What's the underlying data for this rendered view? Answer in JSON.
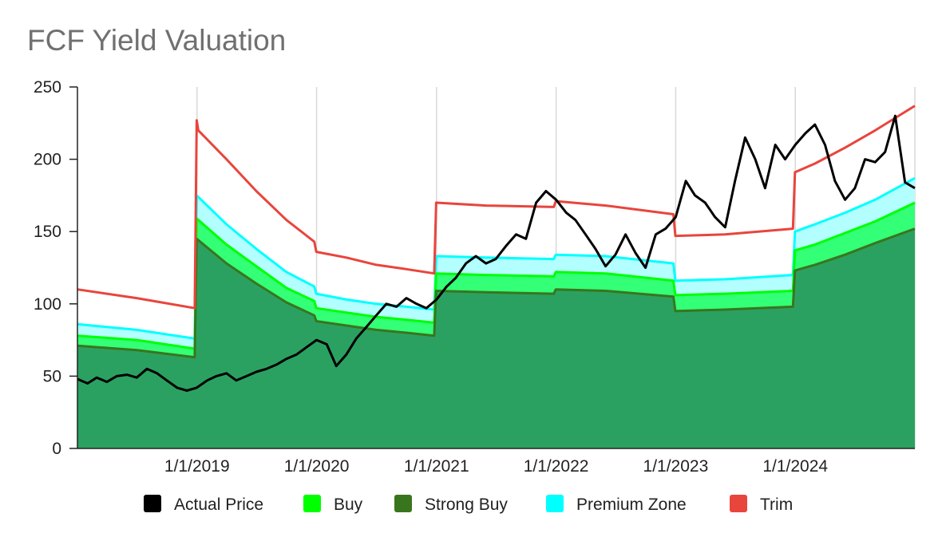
{
  "chart_data": {
    "type": "area",
    "title": "FCF Yield Valuation",
    "xlabel": "",
    "ylabel": "",
    "ylim": [
      0,
      250
    ],
    "xlim": [
      "2018-01-01",
      "2024-12-31"
    ],
    "y_ticks": [
      0,
      50,
      100,
      150,
      200,
      250
    ],
    "x_ticks": [
      {
        "date": "2019-01-01",
        "label": "1/1/2019"
      },
      {
        "date": "2020-01-01",
        "label": "1/1/2020"
      },
      {
        "date": "2021-01-01",
        "label": "1/1/2021"
      },
      {
        "date": "2022-01-01",
        "label": "1/1/2022"
      },
      {
        "date": "2023-01-01",
        "label": "1/1/2023"
      },
      {
        "date": "2024-01-01",
        "label": "1/1/2024"
      }
    ],
    "grid": "vertical",
    "legend_position": "bottom",
    "series": [
      {
        "name": "Trim",
        "kind": "line",
        "color": "#e8453c",
        "points": [
          [
            "2018-01-01",
            110
          ],
          [
            "2018-07-01",
            104
          ],
          [
            "2018-12-25",
            97
          ],
          [
            "2018-12-31",
            227
          ],
          [
            "2019-01-05",
            220
          ],
          [
            "2019-04-01",
            200
          ],
          [
            "2019-07-01",
            178
          ],
          [
            "2019-10-01",
            158
          ],
          [
            "2019-12-25",
            143
          ],
          [
            "2019-12-31",
            136
          ],
          [
            "2020-04-01",
            132
          ],
          [
            "2020-07-01",
            127
          ],
          [
            "2020-10-01",
            124
          ],
          [
            "2020-12-25",
            121
          ],
          [
            "2020-12-31",
            170
          ],
          [
            "2021-06-01",
            168
          ],
          [
            "2021-12-25",
            167
          ],
          [
            "2021-12-31",
            171
          ],
          [
            "2022-06-01",
            168
          ],
          [
            "2022-12-25",
            162
          ],
          [
            "2022-12-31",
            147
          ],
          [
            "2023-06-01",
            148
          ],
          [
            "2023-12-25",
            152
          ],
          [
            "2023-12-31",
            191
          ],
          [
            "2024-03-01",
            197
          ],
          [
            "2024-06-01",
            208
          ],
          [
            "2024-09-01",
            220
          ],
          [
            "2024-12-31",
            237
          ]
        ]
      },
      {
        "name": "Premium Zone",
        "kind": "area",
        "color": "#00ffff",
        "fill": "#b3ffff",
        "points": [
          [
            "2018-01-01",
            86
          ],
          [
            "2018-07-01",
            82
          ],
          [
            "2018-12-25",
            76
          ],
          [
            "2018-12-31",
            175
          ],
          [
            "2019-04-01",
            155
          ],
          [
            "2019-07-01",
            138
          ],
          [
            "2019-10-01",
            122
          ],
          [
            "2019-12-25",
            112
          ],
          [
            "2019-12-31",
            107
          ],
          [
            "2020-04-01",
            103
          ],
          [
            "2020-07-01",
            100
          ],
          [
            "2020-10-01",
            98
          ],
          [
            "2020-12-25",
            96
          ],
          [
            "2020-12-31",
            133
          ],
          [
            "2021-06-01",
            132
          ],
          [
            "2021-12-25",
            131
          ],
          [
            "2021-12-31",
            134
          ],
          [
            "2022-06-01",
            133
          ],
          [
            "2022-12-25",
            128
          ],
          [
            "2022-12-31",
            116
          ],
          [
            "2023-06-01",
            117
          ],
          [
            "2023-12-25",
            120
          ],
          [
            "2023-12-31",
            150
          ],
          [
            "2024-03-01",
            155
          ],
          [
            "2024-06-01",
            163
          ],
          [
            "2024-09-01",
            172
          ],
          [
            "2024-12-31",
            187
          ]
        ]
      },
      {
        "name": "Buy",
        "kind": "area",
        "color": "#00ff00",
        "fill": "#33ff77",
        "points": [
          [
            "2018-01-01",
            78
          ],
          [
            "2018-07-01",
            75
          ],
          [
            "2018-12-25",
            69
          ],
          [
            "2018-12-31",
            159
          ],
          [
            "2019-04-01",
            141
          ],
          [
            "2019-07-01",
            126
          ],
          [
            "2019-10-01",
            111
          ],
          [
            "2019-12-25",
            102
          ],
          [
            "2019-12-31",
            97
          ],
          [
            "2020-04-01",
            94
          ],
          [
            "2020-07-01",
            91
          ],
          [
            "2020-10-01",
            89
          ],
          [
            "2020-12-25",
            87
          ],
          [
            "2020-12-31",
            121
          ],
          [
            "2021-06-01",
            120
          ],
          [
            "2021-12-25",
            119
          ],
          [
            "2021-12-31",
            122
          ],
          [
            "2022-06-01",
            121
          ],
          [
            "2022-12-25",
            116
          ],
          [
            "2022-12-31",
            106
          ],
          [
            "2023-06-01",
            107
          ],
          [
            "2023-12-25",
            109
          ],
          [
            "2023-12-31",
            137
          ],
          [
            "2024-03-01",
            141
          ],
          [
            "2024-06-01",
            149
          ],
          [
            "2024-09-01",
            157
          ],
          [
            "2024-12-31",
            170
          ]
        ]
      },
      {
        "name": "Strong Buy",
        "kind": "area",
        "color": "#38761d",
        "fill": "#2ba161",
        "points": [
          [
            "2018-01-01",
            71
          ],
          [
            "2018-07-01",
            68
          ],
          [
            "2018-12-25",
            63
          ],
          [
            "2018-12-31",
            145
          ],
          [
            "2019-04-01",
            128
          ],
          [
            "2019-07-01",
            114
          ],
          [
            "2019-10-01",
            101
          ],
          [
            "2019-12-25",
            92
          ],
          [
            "2019-12-31",
            88
          ],
          [
            "2020-04-01",
            85
          ],
          [
            "2020-07-01",
            82
          ],
          [
            "2020-10-01",
            80
          ],
          [
            "2020-12-25",
            78
          ],
          [
            "2020-12-31",
            109
          ],
          [
            "2021-06-01",
            108
          ],
          [
            "2021-12-25",
            107
          ],
          [
            "2021-12-31",
            110
          ],
          [
            "2022-06-01",
            109
          ],
          [
            "2022-12-25",
            105
          ],
          [
            "2022-12-31",
            95
          ],
          [
            "2023-06-01",
            96
          ],
          [
            "2023-12-25",
            98
          ],
          [
            "2023-12-31",
            123
          ],
          [
            "2024-03-01",
            127
          ],
          [
            "2024-06-01",
            134
          ],
          [
            "2024-09-01",
            142
          ],
          [
            "2024-12-31",
            152
          ]
        ]
      },
      {
        "name": "Actual Price",
        "kind": "line",
        "color": "#000000",
        "points": [
          [
            "2018-01-01",
            48
          ],
          [
            "2018-02-01",
            45
          ],
          [
            "2018-03-01",
            49
          ],
          [
            "2018-04-01",
            46
          ],
          [
            "2018-05-01",
            50
          ],
          [
            "2018-06-01",
            51
          ],
          [
            "2018-07-01",
            49
          ],
          [
            "2018-08-01",
            55
          ],
          [
            "2018-09-01",
            52
          ],
          [
            "2018-10-01",
            47
          ],
          [
            "2018-11-01",
            42
          ],
          [
            "2018-12-01",
            40
          ],
          [
            "2018-12-31",
            42
          ],
          [
            "2019-02-01",
            47
          ],
          [
            "2019-03-01",
            50
          ],
          [
            "2019-04-01",
            52
          ],
          [
            "2019-05-01",
            47
          ],
          [
            "2019-06-01",
            50
          ],
          [
            "2019-07-01",
            53
          ],
          [
            "2019-08-01",
            55
          ],
          [
            "2019-09-01",
            58
          ],
          [
            "2019-10-01",
            62
          ],
          [
            "2019-11-01",
            65
          ],
          [
            "2019-12-01",
            70
          ],
          [
            "2020-01-01",
            75
          ],
          [
            "2020-02-01",
            72
          ],
          [
            "2020-03-01",
            57
          ],
          [
            "2020-04-01",
            65
          ],
          [
            "2020-05-01",
            76
          ],
          [
            "2020-06-01",
            84
          ],
          [
            "2020-07-01",
            92
          ],
          [
            "2020-08-01",
            100
          ],
          [
            "2020-09-01",
            98
          ],
          [
            "2020-10-01",
            104
          ],
          [
            "2020-11-01",
            100
          ],
          [
            "2020-12-01",
            97
          ],
          [
            "2021-01-01",
            103
          ],
          [
            "2021-02-01",
            112
          ],
          [
            "2021-03-01",
            118
          ],
          [
            "2021-04-01",
            128
          ],
          [
            "2021-05-01",
            133
          ],
          [
            "2021-06-01",
            128
          ],
          [
            "2021-07-01",
            131
          ],
          [
            "2021-08-01",
            140
          ],
          [
            "2021-09-01",
            148
          ],
          [
            "2021-10-01",
            145
          ],
          [
            "2021-11-01",
            170
          ],
          [
            "2021-12-01",
            178
          ],
          [
            "2022-01-01",
            172
          ],
          [
            "2022-02-01",
            163
          ],
          [
            "2022-03-01",
            158
          ],
          [
            "2022-04-01",
            148
          ],
          [
            "2022-05-01",
            138
          ],
          [
            "2022-06-01",
            126
          ],
          [
            "2022-07-01",
            134
          ],
          [
            "2022-08-01",
            148
          ],
          [
            "2022-09-01",
            135
          ],
          [
            "2022-10-01",
            125
          ],
          [
            "2022-11-01",
            148
          ],
          [
            "2022-12-01",
            152
          ],
          [
            "2023-01-01",
            160
          ],
          [
            "2023-02-01",
            185
          ],
          [
            "2023-03-01",
            175
          ],
          [
            "2023-04-01",
            170
          ],
          [
            "2023-05-01",
            160
          ],
          [
            "2023-06-01",
            153
          ],
          [
            "2023-07-01",
            185
          ],
          [
            "2023-08-01",
            215
          ],
          [
            "2023-09-01",
            200
          ],
          [
            "2023-10-01",
            180
          ],
          [
            "2023-11-01",
            210
          ],
          [
            "2023-12-01",
            200
          ],
          [
            "2024-01-01",
            210
          ],
          [
            "2024-02-01",
            218
          ],
          [
            "2024-03-01",
            224
          ],
          [
            "2024-04-01",
            210
          ],
          [
            "2024-05-01",
            185
          ],
          [
            "2024-06-01",
            172
          ],
          [
            "2024-07-01",
            180
          ],
          [
            "2024-08-01",
            200
          ],
          [
            "2024-09-01",
            198
          ],
          [
            "2024-10-01",
            205
          ],
          [
            "2024-11-01",
            230
          ],
          [
            "2024-12-01",
            184
          ],
          [
            "2024-12-31",
            180
          ]
        ]
      }
    ],
    "legend": [
      {
        "label": "Actual Price",
        "color": "#000000"
      },
      {
        "label": "Buy",
        "color": "#00ff00"
      },
      {
        "label": "Strong Buy",
        "color": "#38761d"
      },
      {
        "label": "Premium Zone",
        "color": "#00ffff"
      },
      {
        "label": "Trim",
        "color": "#e8453c"
      }
    ]
  }
}
